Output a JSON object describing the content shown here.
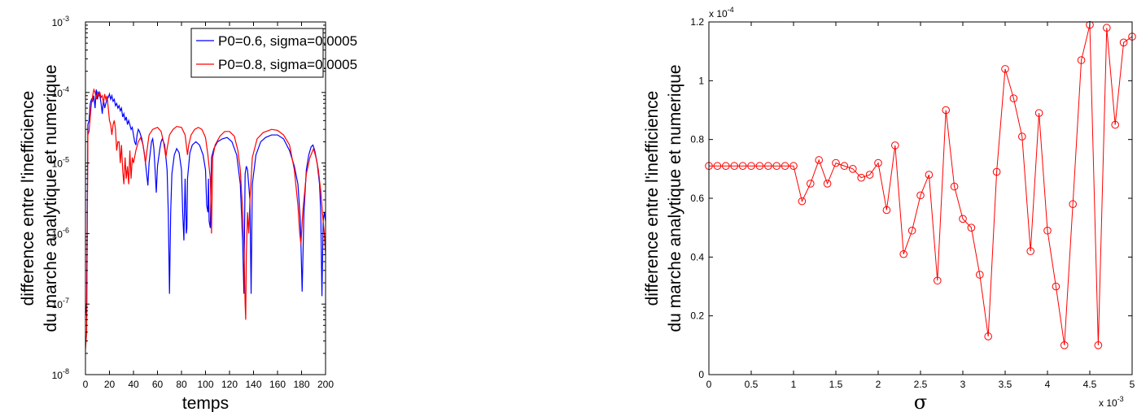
{
  "chart_data": [
    {
      "type": "line",
      "xlabel": "temps",
      "ylabel_lines": [
        "difference entre l'inefficience",
        "du marche analytique et numerique"
      ],
      "xlim": [
        0,
        200
      ],
      "ylim": [
        1e-08,
        0.001
      ],
      "yscale": "log",
      "x_ticks": [
        "0",
        "20",
        "40",
        "60",
        "80",
        "100",
        "120",
        "140",
        "160",
        "180",
        "200"
      ],
      "y_ticks": [
        {
          "base": "10",
          "exp": "-8"
        },
        {
          "base": "10",
          "exp": "-7"
        },
        {
          "base": "10",
          "exp": "-6"
        },
        {
          "base": "10",
          "exp": "-5"
        },
        {
          "base": "10",
          "exp": "-4"
        },
        {
          "base": "10",
          "exp": "-3"
        }
      ],
      "legend_position": "top-right",
      "series": [
        {
          "name": "P0=0.6, sigma=0.0005",
          "color": "#0000ff",
          "points": [
            [
              0,
              7e-08
            ],
            [
              1,
              1e-07
            ],
            [
              2,
              3.5e-05
            ],
            [
              3,
              4e-05
            ],
            [
              4,
              7e-05
            ],
            [
              5,
              8e-05
            ],
            [
              6,
              7.5e-05
            ],
            [
              7,
              9e-05
            ],
            [
              8,
              6e-05
            ],
            [
              9,
              0.00011
            ],
            [
              10,
              8e-05
            ],
            [
              11,
              0.0001
            ],
            [
              12,
              9e-05
            ],
            [
              13,
              7e-05
            ],
            [
              14,
              5e-05
            ],
            [
              15,
              8e-05
            ],
            [
              16,
              6e-05
            ],
            [
              17,
              7e-05
            ],
            [
              18,
              8e-05
            ],
            [
              19,
              8.5e-05
            ],
            [
              20,
              9.5e-05
            ],
            [
              21,
              8e-05
            ],
            [
              22,
              9e-05
            ],
            [
              23,
              7.5e-05
            ],
            [
              24,
              8e-05
            ],
            [
              25,
              6.5e-05
            ],
            [
              26,
              7e-05
            ],
            [
              27,
              6e-05
            ],
            [
              28,
              6.5e-05
            ],
            [
              29,
              5.5e-05
            ],
            [
              30,
              6e-05
            ],
            [
              31,
              4.5e-05
            ],
            [
              32,
              5e-05
            ],
            [
              33,
              4e-05
            ],
            [
              34,
              4.5e-05
            ],
            [
              35,
              3.5e-05
            ],
            [
              36,
              4e-05
            ],
            [
              37,
              3.5e-05
            ],
            [
              38,
              3e-05
            ],
            [
              39,
              3.2e-05
            ],
            [
              40,
              2.5e-05
            ],
            [
              41,
              2e-05
            ],
            [
              42,
              1.8e-05
            ],
            [
              43,
              2.5e-05
            ],
            [
              44,
              3e-05
            ],
            [
              45,
              2.8e-05
            ],
            [
              47,
              2.2e-05
            ],
            [
              49,
              1.4e-05
            ],
            [
              51,
              7e-06
            ],
            [
              52,
              4.8e-06
            ],
            [
              53,
              1e-05
            ],
            [
              55,
              2e-05
            ],
            [
              56,
              2.2e-05
            ],
            [
              57,
              1.6e-05
            ],
            [
              58,
              8e-06
            ],
            [
              59,
              3.8e-06
            ],
            [
              60,
              9e-06
            ],
            [
              62,
              1.6e-05
            ],
            [
              63,
              2e-05
            ],
            [
              64,
              2.2e-05
            ],
            [
              66,
              1.8e-05
            ],
            [
              68,
              8e-06
            ],
            [
              69,
              2e-06
            ],
            [
              70,
              1.4e-07
            ],
            [
              71,
              2e-06
            ],
            [
              72,
              7e-06
            ],
            [
              74,
              1.3e-05
            ],
            [
              76,
              1.6e-05
            ],
            [
              78,
              1.4e-05
            ],
            [
              80,
              8e-06
            ],
            [
              81,
              2e-06
            ],
            [
              82,
              8e-07
            ],
            [
              83,
              6e-06
            ],
            [
              84,
              1e-06
            ],
            [
              84.5,
              1.2e-06
            ],
            [
              85,
              6e-06
            ],
            [
              87,
              1.4e-05
            ],
            [
              89,
              1.8e-05
            ],
            [
              92,
              2e-05
            ],
            [
              95,
              1.8e-05
            ],
            [
              98,
              1.3e-05
            ],
            [
              100,
              8e-06
            ],
            [
              101,
              2.5e-06
            ],
            [
              102,
              2e-06
            ],
            [
              102.5,
              6e-06
            ],
            [
              103,
              1.5e-06
            ],
            [
              104,
              1.2e-06
            ],
            [
              105,
              1.2e-05
            ],
            [
              107,
              1.6e-05
            ],
            [
              110,
              2e-05
            ],
            [
              114,
              2.2e-05
            ],
            [
              118,
              2.3e-05
            ],
            [
              122,
              2e-05
            ],
            [
              126,
              1.3e-05
            ],
            [
              129,
              5e-06
            ],
            [
              131,
              7e-07
            ],
            [
              132,
              1.4e-07
            ],
            [
              133,
              7e-06
            ],
            [
              134,
              9e-06
            ],
            [
              135,
              8e-06
            ],
            [
              137,
              3e-06
            ],
            [
              138,
              1.4e-07
            ],
            [
              139,
              5e-06
            ],
            [
              142,
              1.3e-05
            ],
            [
              146,
              2e-05
            ],
            [
              150,
              2.3e-05
            ],
            [
              155,
              2.5e-05
            ],
            [
              160,
              2.5e-05
            ],
            [
              165,
              2.2e-05
            ],
            [
              170,
              1.5e-05
            ],
            [
              174,
              9e-06
            ],
            [
              177,
              5e-06
            ],
            [
              179,
              1.5e-06
            ],
            [
              180.5,
              1.5e-07
            ],
            [
              182,
              2e-06
            ],
            [
              184,
              8e-06
            ],
            [
              186,
              1.3e-05
            ],
            [
              188,
              1.7e-05
            ],
            [
              189.5,
              1.8e-05
            ],
            [
              191,
              1.5e-05
            ],
            [
              193,
              1e-05
            ],
            [
              195,
              5e-06
            ],
            [
              196,
              2e-06
            ],
            [
              197,
              1.3e-07
            ],
            [
              198,
              1.5e-06
            ],
            [
              199,
              2e-06
            ],
            [
              200,
              1.5e-06
            ]
          ]
        },
        {
          "name": "P0=0.8, sigma=0.0005",
          "color": "#ff0000",
          "points": [
            [
              0,
              2.3e-08
            ],
            [
              1,
              4e-08
            ],
            [
              2,
              2.5e-05
            ],
            [
              3,
              2.8e-05
            ],
            [
              4,
              4.5e-05
            ],
            [
              5,
              7e-05
            ],
            [
              6,
              9e-05
            ],
            [
              7,
              0.00011
            ],
            [
              8,
              0.0001
            ],
            [
              9,
              8e-05
            ],
            [
              10,
              0.0001
            ],
            [
              11,
              9e-05
            ],
            [
              12,
              0.0001
            ],
            [
              13,
              8.5e-05
            ],
            [
              14,
              9e-05
            ],
            [
              15,
              7e-05
            ],
            [
              16,
              9.5e-05
            ],
            [
              17,
              8e-05
            ],
            [
              18,
              9e-05
            ],
            [
              19,
              6e-05
            ],
            [
              20,
              4e-05
            ],
            [
              21,
              3.5e-05
            ],
            [
              22,
              2.5e-05
            ],
            [
              23,
              3.5e-05
            ],
            [
              24,
              4e-05
            ],
            [
              25,
              3e-05
            ],
            [
              26,
              1.5e-05
            ],
            [
              27,
              2e-05
            ],
            [
              28,
              2e-05
            ],
            [
              29,
              1e-05
            ],
            [
              30,
              1.8e-05
            ],
            [
              31,
              8e-06
            ],
            [
              32,
              5e-06
            ],
            [
              33,
              1.2e-05
            ],
            [
              34,
              6e-06
            ],
            [
              35,
              9e-06
            ],
            [
              36,
              5e-06
            ],
            [
              37,
              1.5e-05
            ],
            [
              38,
              6e-06
            ],
            [
              39,
              1.2e-05
            ],
            [
              40,
              1e-05
            ],
            [
              42,
              1.5e-05
            ],
            [
              44,
              2e-05
            ],
            [
              46,
              2.3e-05
            ],
            [
              48,
              1.8e-05
            ],
            [
              50,
              1e-05
            ],
            [
              51,
              1.4e-05
            ],
            [
              53,
              2.5e-05
            ],
            [
              56,
              3e-05
            ],
            [
              60,
              3.2e-05
            ],
            [
              63,
              2.8e-05
            ],
            [
              65,
              2e-05
            ],
            [
              67,
              1.2e-05
            ],
            [
              68,
              1.6e-05
            ],
            [
              70,
              2.5e-05
            ],
            [
              73,
              3e-05
            ],
            [
              76,
              3.3e-05
            ],
            [
              80,
              3.2e-05
            ],
            [
              83,
              2.5e-05
            ],
            [
              85,
              1.3e-05
            ],
            [
              86,
              1.8e-05
            ],
            [
              88,
              2.5e-05
            ],
            [
              91,
              3e-05
            ],
            [
              94,
              3.2e-05
            ],
            [
              97,
              3e-05
            ],
            [
              100,
              2.3e-05
            ],
            [
              102,
              1.3e-05
            ],
            [
              104,
              6e-06
            ],
            [
              105,
              1e-06
            ],
            [
              106,
              1.2e-05
            ],
            [
              108,
              1.8e-05
            ],
            [
              112,
              2.4e-05
            ],
            [
              116,
              2.8e-05
            ],
            [
              120,
              2.8e-05
            ],
            [
              124,
              2.4e-05
            ],
            [
              127,
              1.5e-05
            ],
            [
              129,
              8e-06
            ],
            [
              131,
              2e-06
            ],
            [
              132,
              7e-07
            ],
            [
              133,
              1e-07
            ],
            [
              133.5,
              6e-08
            ],
            [
              134,
              5e-07
            ],
            [
              135,
              2e-06
            ],
            [
              136,
              1e-06
            ],
            [
              137,
              3e-06
            ],
            [
              139,
              1.2e-05
            ],
            [
              143,
              2.2e-05
            ],
            [
              148,
              2.7e-05
            ],
            [
              155,
              3e-05
            ],
            [
              160,
              2.9e-05
            ],
            [
              165,
              2.5e-05
            ],
            [
              170,
              1.8e-05
            ],
            [
              174,
              8e-06
            ],
            [
              177,
              2.5e-06
            ],
            [
              178.5,
              1e-06
            ],
            [
              179.5,
              7e-07
            ],
            [
              181,
              2e-06
            ],
            [
              184,
              7e-06
            ],
            [
              187,
              1.2e-05
            ],
            [
              190,
              1.6e-05
            ],
            [
              192,
              1.2e-05
            ],
            [
              194,
              8e-06
            ],
            [
              196,
              4e-06
            ],
            [
              198,
              1.5e-06
            ],
            [
              199,
              1e-06
            ],
            [
              200,
              5e-07
            ]
          ]
        }
      ]
    },
    {
      "type": "line",
      "xlabel": "σ",
      "ylabel_lines": [
        "difference entre l'inefficience",
        "du marche analytique et numerique"
      ],
      "xlim": [
        0,
        5
      ],
      "ylim": [
        0,
        1.2
      ],
      "x_ticks": [
        "0",
        "0.5",
        "1",
        "1.5",
        "2",
        "2.5",
        "3",
        "3.5",
        "4",
        "4.5",
        "5"
      ],
      "y_ticks": [
        "0",
        "0.2",
        "0.4",
        "0.6",
        "0.8",
        "1",
        "1.2"
      ],
      "x_multiplier": {
        "base": "x 10",
        "exp": "-3"
      },
      "y_multiplier": {
        "base": "x 10",
        "exp": "-4"
      },
      "series": [
        {
          "color": "#ff0000",
          "marker": "circle",
          "x": [
            0,
            0.1,
            0.2,
            0.3,
            0.4,
            0.5,
            0.6,
            0.7,
            0.8,
            0.9,
            1.0,
            1.1,
            1.2,
            1.3,
            1.4,
            1.5,
            1.6,
            1.7,
            1.8,
            1.9,
            2.0,
            2.1,
            2.2,
            2.3,
            2.4,
            2.5,
            2.6,
            2.7,
            2.8,
            2.9,
            3.0,
            3.1,
            3.2,
            3.3,
            3.4,
            3.5,
            3.6,
            3.7,
            3.8,
            3.9,
            4.0,
            4.1,
            4.2,
            4.3,
            4.4,
            4.5,
            4.6,
            4.7,
            4.8,
            4.9,
            5.0
          ],
          "y": [
            0.71,
            0.71,
            0.71,
            0.71,
            0.71,
            0.71,
            0.71,
            0.71,
            0.71,
            0.71,
            0.71,
            0.59,
            0.65,
            0.73,
            0.65,
            0.72,
            0.71,
            0.7,
            0.67,
            0.68,
            0.72,
            0.56,
            0.78,
            0.41,
            0.49,
            0.61,
            0.68,
            0.32,
            0.9,
            0.64,
            0.53,
            0.5,
            0.34,
            0.13,
            0.69,
            1.04,
            0.94,
            0.81,
            0.42,
            0.89,
            0.49,
            0.3,
            0.1,
            0.58,
            1.07,
            1.19,
            0.1,
            1.18,
            0.85,
            1.13,
            1.15
          ]
        }
      ]
    }
  ]
}
